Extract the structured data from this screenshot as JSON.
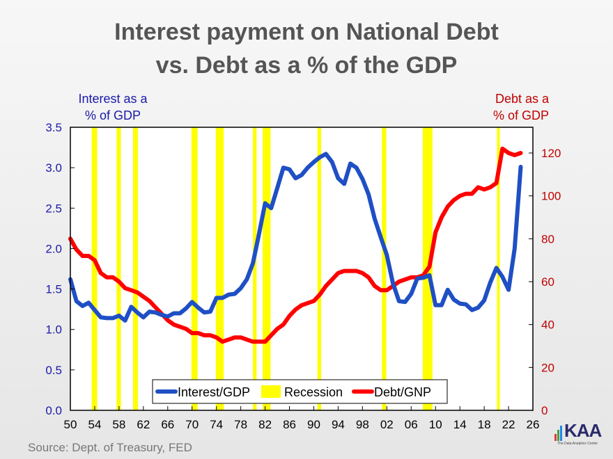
{
  "title": [
    "Interest payment on National Debt",
    "vs. Debt as a % of the GDP"
  ],
  "left_axis_title": [
    "Interest as a",
    "% of GDP"
  ],
  "right_axis_title": [
    "Debt as a",
    "% of GDP"
  ],
  "source": "Source:  Dept. of Treasury, FED",
  "logo": {
    "text": "KAA",
    "subtitle": "The Data Analytics Center"
  },
  "colors": {
    "interest": "#1f4fc4",
    "recession": "#ffff00",
    "debt": "#ff0000",
    "left_axis": "#1a1aa8",
    "right_axis": "#c00000"
  },
  "chart_data": {
    "type": "line",
    "x_ticks": [
      "50",
      "54",
      "58",
      "62",
      "66",
      "70",
      "74",
      "78",
      "82",
      "86",
      "90",
      "94",
      "98",
      "02",
      "06",
      "10",
      "14",
      "18",
      "22",
      "26"
    ],
    "y_left": {
      "ticks": [
        "0.0",
        "0.5",
        "1.0",
        "1.5",
        "2.0",
        "2.5",
        "3.0",
        "3.5"
      ],
      "range": [
        0,
        3.5
      ],
      "color": "#1a1aa8"
    },
    "y_right": {
      "ticks": [
        "0",
        "20",
        "40",
        "60",
        "80",
        "100",
        "120"
      ],
      "range": [
        0,
        132
      ],
      "color": "#c00000"
    },
    "x_range": [
      1950,
      2026
    ],
    "legend": {
      "position": "bottom-center",
      "items": [
        {
          "name": "Interest/GDP",
          "color": "#1f4fc4"
        },
        {
          "name": "Recession",
          "color": "#ffff00"
        },
        {
          "name": "Debt/GNP",
          "color": "#ff0000"
        }
      ]
    },
    "recessions": [
      [
        1953.5,
        1954.4
      ],
      [
        1957.6,
        1958.3
      ],
      [
        1960.3,
        1961.1
      ],
      [
        1969.9,
        1970.9
      ],
      [
        1973.9,
        1975.2
      ],
      [
        1980.0,
        1980.6
      ],
      [
        1981.6,
        1982.9
      ],
      [
        1990.6,
        1991.2
      ],
      [
        2001.2,
        2001.9
      ],
      [
        2007.9,
        2009.5
      ],
      [
        2020.1,
        2020.5
      ]
    ],
    "series": [
      {
        "name": "Interest/GDP",
        "axis": "left",
        "x": [
          1950,
          1951,
          1952,
          1953,
          1954,
          1955,
          1956,
          1957,
          1958,
          1959,
          1960,
          1961,
          1962,
          1963,
          1964,
          1965,
          1966,
          1967,
          1968,
          1969,
          1970,
          1971,
          1972,
          1973,
          1974,
          1975,
          1976,
          1977,
          1978,
          1979,
          1980,
          1981,
          1982,
          1983,
          1984,
          1985,
          1986,
          1987,
          1988,
          1989,
          1990,
          1991,
          1992,
          1993,
          1994,
          1995,
          1996,
          1997,
          1998,
          1999,
          2000,
          2001,
          2002,
          2003,
          2004,
          2005,
          2006,
          2007,
          2008,
          2009,
          2010,
          2011,
          2012,
          2013,
          2014,
          2015,
          2016,
          2017,
          2018,
          2019,
          2020,
          2021,
          2022,
          2023,
          2024
        ],
        "values": [
          1.62,
          1.35,
          1.29,
          1.33,
          1.24,
          1.15,
          1.14,
          1.14,
          1.17,
          1.11,
          1.28,
          1.21,
          1.15,
          1.22,
          1.21,
          1.18,
          1.16,
          1.2,
          1.2,
          1.26,
          1.34,
          1.27,
          1.21,
          1.22,
          1.39,
          1.39,
          1.43,
          1.44,
          1.51,
          1.62,
          1.82,
          2.18,
          2.56,
          2.5,
          2.75,
          3.0,
          2.98,
          2.87,
          2.91,
          3.0,
          3.07,
          3.13,
          3.17,
          3.07,
          2.87,
          2.8,
          3.05,
          3.0,
          2.86,
          2.67,
          2.37,
          2.14,
          1.92,
          1.57,
          1.35,
          1.34,
          1.44,
          1.63,
          1.64,
          1.67,
          1.3,
          1.3,
          1.49,
          1.37,
          1.32,
          1.31,
          1.24,
          1.27,
          1.36,
          1.58,
          1.76,
          1.65,
          1.49,
          2.0,
          3.01
        ]
      },
      {
        "name": "Debt/GNP",
        "axis": "right",
        "x": [
          1950,
          1951,
          1952,
          1953,
          1954,
          1955,
          1956,
          1957,
          1958,
          1959,
          1960,
          1961,
          1962,
          1963,
          1964,
          1965,
          1966,
          1967,
          1968,
          1969,
          1970,
          1971,
          1972,
          1973,
          1974,
          1975,
          1976,
          1977,
          1978,
          1979,
          1980,
          1981,
          1982,
          1983,
          1984,
          1985,
          1986,
          1987,
          1988,
          1989,
          1990,
          1991,
          1992,
          1993,
          1994,
          1995,
          1996,
          1997,
          1998,
          1999,
          2000,
          2001,
          2002,
          2003,
          2004,
          2005,
          2006,
          2007,
          2008,
          2009,
          2010,
          2011,
          2012,
          2013,
          2014,
          2015,
          2016,
          2017,
          2018,
          2019,
          2020,
          2021,
          2022,
          2023,
          2024
        ],
        "values": [
          80,
          75,
          72,
          72,
          70,
          64,
          62,
          62,
          60,
          57,
          56,
          55,
          53,
          51,
          48,
          45,
          42,
          40,
          39,
          38,
          36,
          36,
          35,
          35,
          34,
          32,
          33,
          34,
          34,
          33,
          32,
          32,
          32,
          35,
          38,
          40,
          44,
          47,
          49,
          50,
          51,
          54,
          58,
          61,
          64,
          65,
          65,
          65,
          64,
          62,
          58,
          56,
          56,
          58,
          60,
          61,
          62,
          62,
          63,
          67,
          83,
          90,
          95,
          98,
          100,
          101,
          101,
          104,
          103,
          104,
          106,
          122,
          120,
          119,
          120
        ]
      }
    ]
  }
}
